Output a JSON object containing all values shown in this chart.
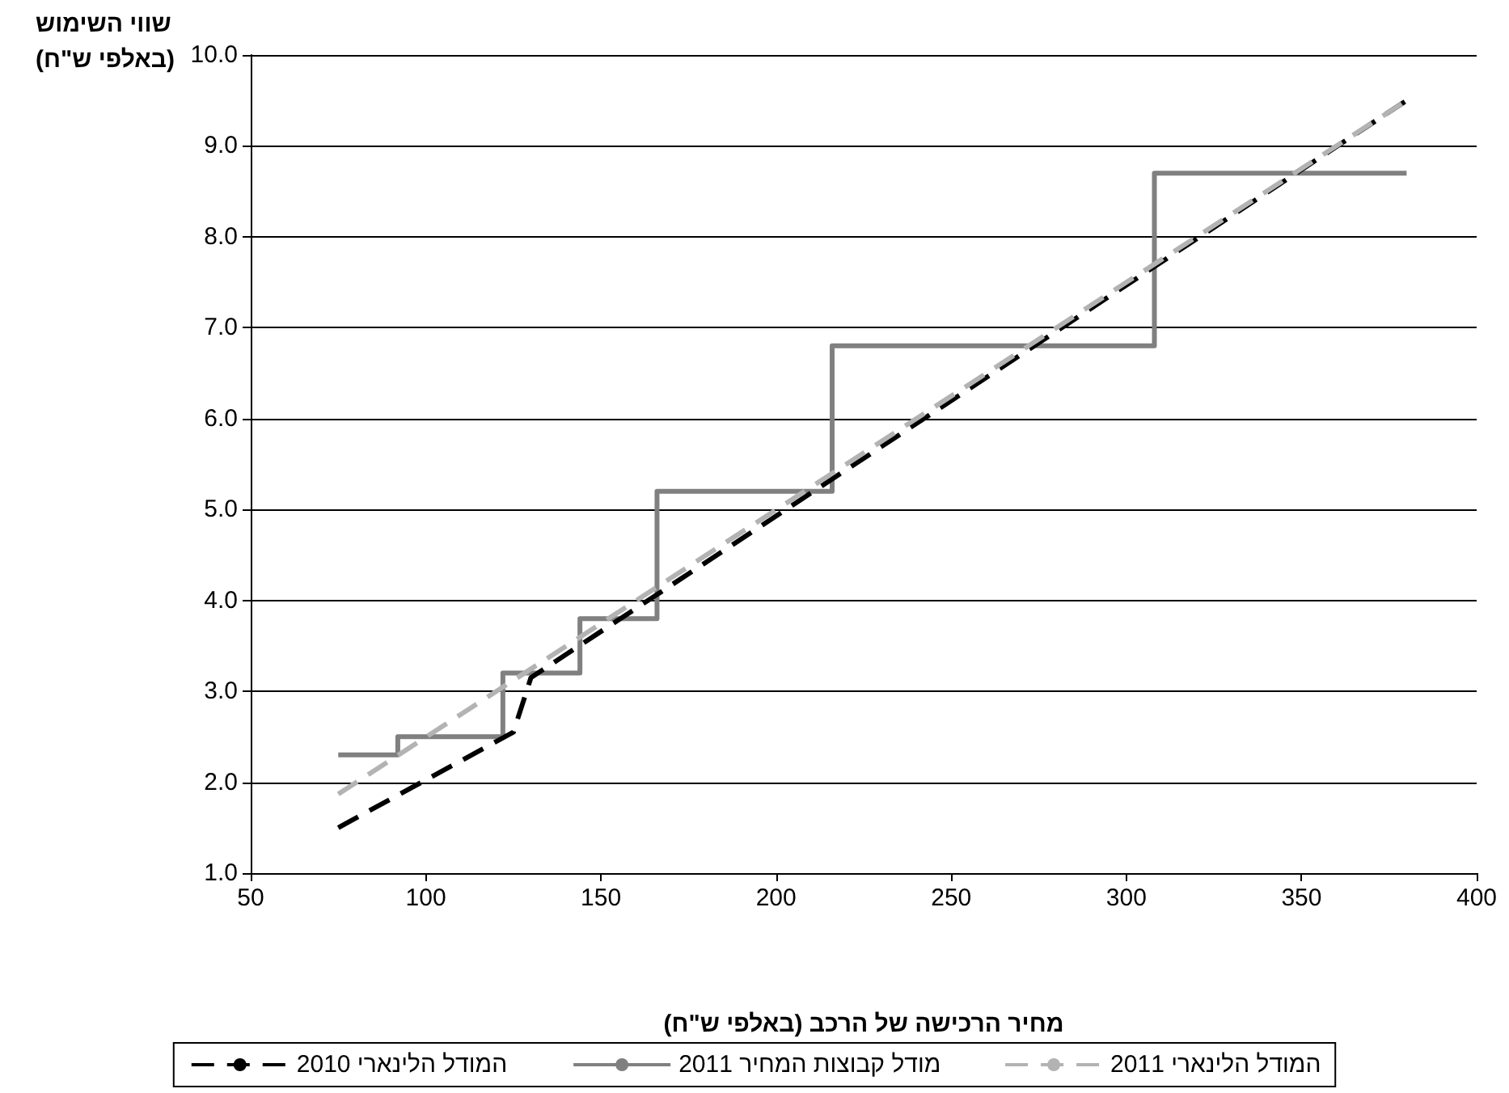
{
  "chart_data": {
    "type": "line",
    "xlabel": "מחיר הרכישה של הרכב (באלפי ש\"ח)",
    "ylabel": "שווי השימוש\n(באלפי ש\"ח)",
    "xlim": [
      50,
      400
    ],
    "xticks": [
      50,
      100,
      150,
      200,
      250,
      300,
      350,
      400
    ],
    "ylim": [
      1,
      10
    ],
    "yticks": [
      {
        "value": 1,
        "label": "1.0"
      },
      {
        "value": 2,
        "label": "2.0"
      },
      {
        "value": 3,
        "label": "3.0"
      },
      {
        "value": 4,
        "label": "4.0"
      },
      {
        "value": 5,
        "label": "5.0"
      },
      {
        "value": 6,
        "label": "6.0"
      },
      {
        "value": 7,
        "label": "7.0"
      },
      {
        "value": 8,
        "label": "8.0"
      },
      {
        "value": 9,
        "label": "9.0"
      },
      {
        "value": 10,
        "label": "10.0"
      }
    ],
    "grid": "y",
    "legend": "bottom",
    "marker": "none",
    "series": [
      {
        "name": "המודל הלינארי 2010",
        "color": "#000000",
        "line_style": "dashed",
        "x": [
          75,
          125,
          130,
          380
        ],
        "values": [
          1.5,
          2.55,
          3.15,
          9.5
        ]
      },
      {
        "name": "מודל קבוצות המחיר 2011",
        "type": "step",
        "color": "#808080",
        "line_style": "solid",
        "x": [
          75,
          92,
          122,
          144,
          166,
          216,
          308,
          380
        ],
        "values": [
          2.3,
          2.5,
          3.2,
          3.8,
          5.2,
          6.8,
          8.7,
          8.7
        ]
      },
      {
        "name": "המודל הלינארי 2011",
        "color": "#b3b3b3",
        "line_style": "dashed",
        "x": [
          75,
          380
        ],
        "values": [
          1.87,
          9.5
        ]
      }
    ]
  }
}
